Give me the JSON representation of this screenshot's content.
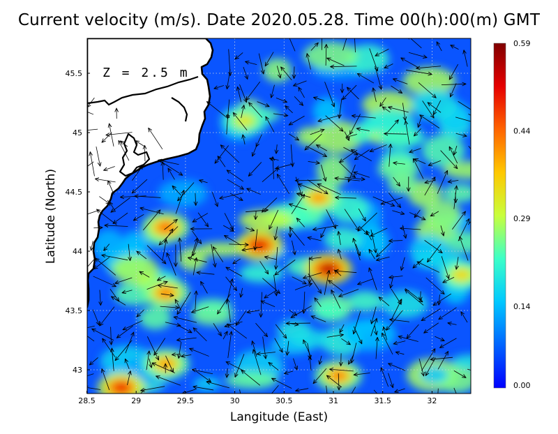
{
  "title": "Current velocity (m/s). Date 2020.05.28. Time 00(h):00(m) GMT",
  "depth_label": "Z = 2.5 m",
  "x_axis_label": "Langitude (East)",
  "y_axis_label": "Latitude (North)",
  "x_ticks": [
    "28.5",
    "29",
    "29.5",
    "30",
    "30.5",
    "31",
    "31.5",
    "32"
  ],
  "y_ticks": [
    "43",
    "43.5",
    "44",
    "44.5",
    "45",
    "45.5"
  ],
  "colorbar_ticks": [
    "0.59",
    "0.44",
    "0.29",
    "0.14",
    "0.00"
  ],
  "colorbar_colors": [
    "#0000ff",
    "#0064ff",
    "#00c8ff",
    "#3cffc8",
    "#c8ff3c",
    "#ffc800",
    "#ff6400",
    "#e60000",
    "#800000"
  ],
  "chart_data": {
    "type": "heatmap",
    "title": "Current velocity (m/s). Date 2020.05.28. Time 00(h):00(m) GMT",
    "xlabel": "Langitude (East)",
    "ylabel": "Latitude (North)",
    "xlim": [
      28.5,
      32.4
    ],
    "ylim": [
      42.8,
      45.8
    ],
    "colorbar_range": [
      0.0,
      0.59
    ],
    "colorbar_ticks": [
      0.0,
      0.14,
      0.29,
      0.44,
      0.59
    ],
    "overlay": "current velocity vectors (arrows)",
    "grid": true,
    "hotspots": [
      {
        "lon": 30.95,
        "lat": 43.85,
        "value": 0.55
      },
      {
        "lon": 30.25,
        "lat": 44.05,
        "value": 0.52
      },
      {
        "lon": 28.85,
        "lat": 42.85,
        "value": 0.5
      },
      {
        "lon": 29.3,
        "lat": 44.2,
        "value": 0.44
      },
      {
        "lon": 29.3,
        "lat": 43.65,
        "value": 0.42
      },
      {
        "lon": 30.85,
        "lat": 44.45,
        "value": 0.4
      },
      {
        "lon": 31.05,
        "lat": 42.95,
        "value": 0.42
      },
      {
        "lon": 29.3,
        "lat": 43.05,
        "value": 0.4
      },
      {
        "lon": 32.3,
        "lat": 43.8,
        "value": 0.35
      },
      {
        "lon": 30.1,
        "lat": 45.1,
        "value": 0.33
      }
    ]
  }
}
